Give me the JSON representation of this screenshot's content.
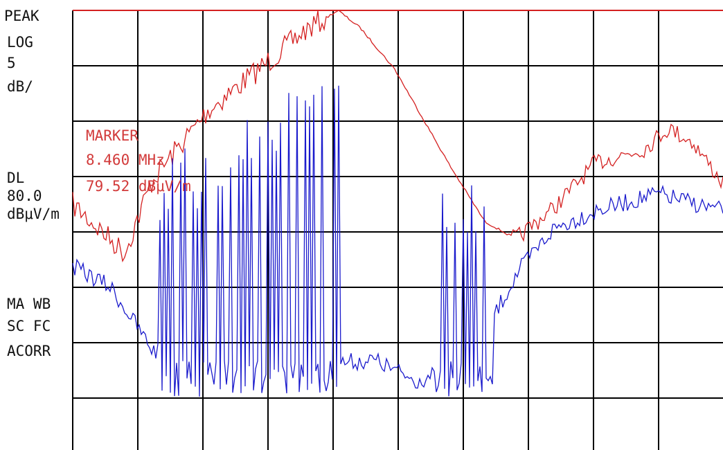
{
  "status": {
    "detector": "PEAK",
    "scale": "LOG",
    "scale_value": "5",
    "scale_unit": "dB/"
  },
  "display_line": {
    "label": "DL",
    "value": "80.0",
    "unit": "dBμV/m"
  },
  "settings": [
    "MA WB",
    "SC FC",
    "ACORR"
  ],
  "marker": {
    "label": "MARKER",
    "frequency": "8.460 MHz",
    "level": "79.52 dBμV/m"
  }
}
